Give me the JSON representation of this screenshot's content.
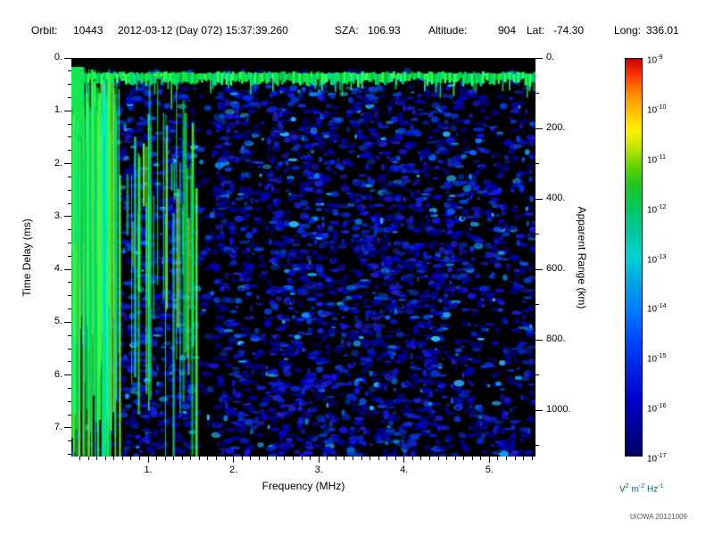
{
  "header": {
    "orbit_label": "Orbit:",
    "orbit_value": "10443",
    "datetime": "2012-03-12 (Day 072) 15:37:39.260",
    "sza_label": "SZA:",
    "sza_value": "106.93",
    "altitude_label": "Altitude:",
    "altitude_value": "904",
    "lat_label": "Lat:",
    "lat_value": "-74.30",
    "long_label": "Long:",
    "long_value": "336.01"
  },
  "chart_data": {
    "type": "heatmap",
    "xlabel": "Frequency (MHz)",
    "ylabel_left": "Time Delay (ms)",
    "ylabel_right": "Apparent Range (km)",
    "x_range_mhz": [
      0.1,
      5.54
    ],
    "y_range_ms": [
      0.0,
      7.54
    ],
    "y_range_km": [
      0,
      1131
    ],
    "x_tick_values": [
      1,
      2,
      3,
      4,
      5
    ],
    "x_tick_labels": [
      "1.",
      "2.",
      "3.",
      "4.",
      "5."
    ],
    "y_tick_values_ms": [
      0,
      1,
      2,
      3,
      4,
      5,
      6,
      7
    ],
    "y_tick_labels_ms": [
      "0.",
      "1.",
      "2.",
      "3.",
      "4.",
      "5.",
      "6.",
      "7."
    ],
    "y_tick_values_km": [
      0,
      200,
      400,
      600,
      800,
      1000
    ],
    "y_tick_labels_km": [
      "0.",
      "200.",
      "400.",
      "600.",
      "800.",
      "1000."
    ],
    "colorbar": {
      "tick_base": "10",
      "tick_exponents": [
        "-9",
        "-10",
        "-11",
        "-12",
        "-13",
        "-14",
        "-15",
        "-16",
        "-17"
      ],
      "scale_min": 1e-17,
      "scale_max": 1e-09,
      "units_parts": [
        {
          "base": "V",
          "exp": "2"
        },
        {
          "base": "m",
          "exp": "-2"
        },
        {
          "base": "Hz",
          "exp": "-1"
        }
      ],
      "colormap_stops": [
        {
          "pos": 0,
          "color": "#c80000"
        },
        {
          "pos": 4,
          "color": "#ff3200"
        },
        {
          "pos": 9,
          "color": "#ff8c00"
        },
        {
          "pos": 14,
          "color": "#ffc800"
        },
        {
          "pos": 18,
          "color": "#fff000"
        },
        {
          "pos": 22,
          "color": "#c8e600"
        },
        {
          "pos": 27,
          "color": "#64d200"
        },
        {
          "pos": 32,
          "color": "#1ec81e"
        },
        {
          "pos": 38,
          "color": "#00c864"
        },
        {
          "pos": 44,
          "color": "#00c8a0"
        },
        {
          "pos": 50,
          "color": "#00d2d2"
        },
        {
          "pos": 57,
          "color": "#00a0e6"
        },
        {
          "pos": 64,
          "color": "#0078ff"
        },
        {
          "pos": 71,
          "color": "#0046ff"
        },
        {
          "pos": 78,
          "color": "#0023e6"
        },
        {
          "pos": 86,
          "color": "#0000c8"
        },
        {
          "pos": 93,
          "color": "#000096"
        },
        {
          "pos": 100,
          "color": "#000064"
        }
      ]
    },
    "features": {
      "surface_echo_band": {
        "delay_ms_start": 0.27,
        "delay_ms_end": 0.48,
        "intensity": "bright green band (~1e-12 V^2 m^-2 Hz^-1) across all frequencies"
      },
      "low_freq_plasma_interference": {
        "freq_mhz_max": 1.5,
        "description": "dense green/cyan vertical streaks, strongest below ~0.6 MHz, extending over the full time-delay range; sparser isolated streaks up to ~1.5 MHz"
      },
      "diffuse_noise": "speckled blue low-intensity noise (~1e-16 to 1e-15) filling ~0.5-7.5 ms over ~0.5-5.5 MHz, with darker vertical gaps near 1.6-1.8 and 2.2-2.4 MHz",
      "background_level": "black, below 1e-17"
    }
  },
  "footer": {
    "credit": "UIOWA 20121009"
  }
}
